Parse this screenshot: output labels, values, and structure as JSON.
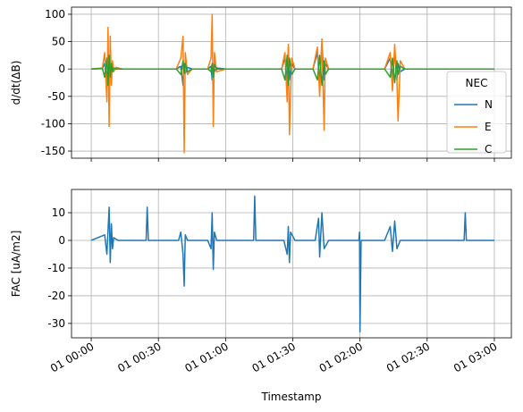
{
  "chart_data": [
    {
      "type": "line",
      "ylabel": "d/dt(ΔB)",
      "x": [
        0,
        5,
        6,
        7,
        7.5,
        8,
        8.5,
        9,
        9.5,
        10,
        11,
        14,
        38,
        40,
        41,
        41.5,
        42,
        43,
        45,
        52,
        53.5,
        54,
        54.5,
        55,
        56,
        60,
        85,
        86.5,
        87.5,
        88,
        88.5,
        89.5,
        91,
        99,
        101,
        102,
        103,
        104,
        104.5,
        106,
        131,
        133.5,
        134.5,
        135.5,
        136.5,
        137,
        138,
        140,
        160,
        180
      ],
      "series": [
        {
          "name": "N",
          "color": "#1f77b4",
          "values": [
            0,
            1,
            10,
            -20,
            28,
            -25,
            15,
            -10,
            5,
            -3,
            2,
            0,
            0,
            5,
            -30,
            10,
            -8,
            3,
            0,
            0,
            5,
            -20,
            10,
            -5,
            2,
            0,
            0,
            20,
            -25,
            40,
            -20,
            10,
            0,
            0,
            30,
            -25,
            45,
            -20,
            10,
            0,
            0,
            20,
            -15,
            30,
            -20,
            10,
            -5,
            0,
            0,
            0
          ]
        },
        {
          "name": "E",
          "color": "#ff7f0e",
          "values": [
            0,
            2,
            30,
            -60,
            76,
            -105,
            60,
            -30,
            15,
            -5,
            3,
            0,
            0,
            20,
            60,
            -153,
            30,
            -10,
            0,
            0,
            20,
            100,
            -105,
            30,
            -5,
            0,
            0,
            30,
            -60,
            45,
            -120,
            20,
            0,
            0,
            40,
            -50,
            55,
            -112,
            20,
            0,
            0,
            30,
            -40,
            45,
            -20,
            -95,
            15,
            0,
            0,
            0
          ]
        },
        {
          "name": "C",
          "color": "#2ca02c",
          "values": [
            0,
            1,
            -15,
            20,
            -30,
            25,
            -15,
            10,
            -5,
            2,
            0,
            0,
            0,
            -10,
            15,
            -8,
            10,
            -5,
            0,
            0,
            -5,
            10,
            -15,
            8,
            0,
            0,
            0,
            -20,
            25,
            -30,
            20,
            -10,
            0,
            0,
            -20,
            25,
            -30,
            15,
            -10,
            0,
            0,
            -15,
            20,
            -25,
            15,
            -10,
            5,
            0,
            0,
            0
          ]
        }
      ],
      "xlim": [
        -8.8,
        187.6
      ],
      "xticks": [
        0,
        30,
        60,
        90,
        120,
        150,
        180
      ],
      "ylim": [
        -163,
        113
      ],
      "yticks": [
        -150,
        -100,
        -50,
        0,
        50,
        100
      ],
      "grid": true,
      "legend_title": "NEC",
      "legend": "lower right"
    },
    {
      "type": "line",
      "ylabel": "FAC [uA/m2]",
      "xlabel": "Timestamp",
      "x": [
        0,
        6,
        7,
        8,
        8.5,
        9,
        9.5,
        10,
        12,
        24.5,
        25,
        25.5,
        39,
        40,
        41,
        41.5,
        42,
        43,
        52,
        53.5,
        54,
        54.5,
        55,
        56,
        72.5,
        73,
        73.5,
        86,
        87.5,
        88,
        88.5,
        89,
        91,
        100,
        101.5,
        102,
        103,
        104,
        106,
        119.5,
        119.8,
        120,
        120.5,
        131,
        133.5,
        134.5,
        135.5,
        136.5,
        138,
        150,
        166.5,
        167,
        167.5,
        180
      ],
      "series": [
        {
          "color": "#1f77b4",
          "values": [
            0,
            2,
            -5,
            12,
            -8,
            6,
            -3,
            1,
            0,
            0,
            12,
            0,
            0,
            3,
            -5,
            -16.5,
            2,
            0,
            0,
            -3,
            10,
            -10.5,
            3,
            0,
            0,
            16,
            0,
            0,
            -5,
            5,
            -8,
            3,
            0,
            0,
            8,
            -6,
            10,
            -3,
            0,
            0,
            3,
            -33,
            0,
            0,
            5,
            -4,
            7,
            -3,
            0,
            0,
            0,
            10,
            0,
            0
          ]
        }
      ],
      "xlim": [
        -8.8,
        187.6
      ],
      "xticks": [
        {
          "value": 0,
          "label": "01 00:00"
        },
        {
          "value": 30,
          "label": "01 00:30"
        },
        {
          "value": 60,
          "label": "01 01:00"
        },
        {
          "value": 90,
          "label": "01 01:30"
        },
        {
          "value": 120,
          "label": "01 02:00"
        },
        {
          "value": 150,
          "label": "01 02:30"
        },
        {
          "value": 180,
          "label": "01 03:00"
        }
      ],
      "ylim": [
        -35.2,
        18.4
      ],
      "yticks": [
        -30,
        -20,
        -10,
        0,
        10
      ],
      "grid": true
    }
  ]
}
